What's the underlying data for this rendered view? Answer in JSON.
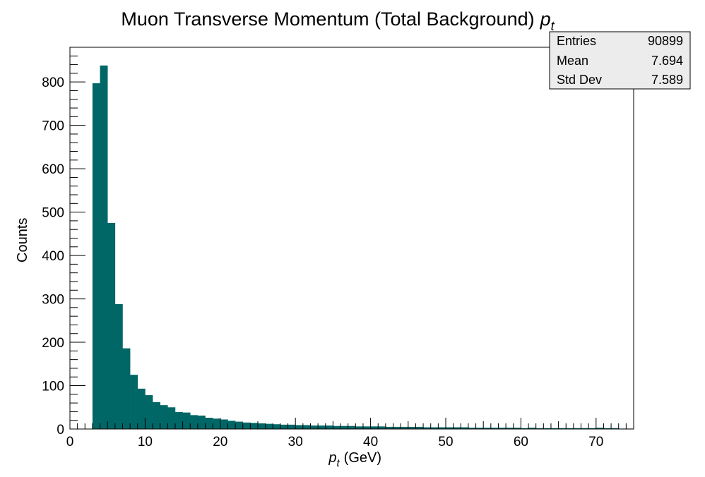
{
  "chart_data": {
    "type": "bar",
    "title": "Muon Transverse Momentum (Total Background)",
    "title_math": {
      "base": "p",
      "sub": "t"
    },
    "xlabel": {
      "base": "p",
      "sub": "t",
      "unit": "(GeV)"
    },
    "ylabel": "Counts",
    "xlim": [
      0,
      75
    ],
    "ylim": [
      0,
      880
    ],
    "xticks": [
      0,
      10,
      20,
      30,
      40,
      50,
      60,
      70
    ],
    "yticks": [
      0,
      100,
      200,
      300,
      400,
      500,
      600,
      700,
      800
    ],
    "bin_width": 1,
    "bins_start": 3,
    "values": [
      797,
      838,
      475,
      288,
      186,
      125,
      93,
      78,
      62,
      55,
      50,
      39,
      38,
      32,
      31,
      26,
      24,
      22,
      19,
      17,
      15,
      14,
      13,
      12,
      11,
      10,
      10,
      9,
      9,
      8,
      8,
      8,
      7,
      7,
      7,
      6,
      6,
      6,
      6,
      5,
      5,
      5,
      5,
      5,
      4,
      4,
      4,
      4,
      4,
      4,
      3,
      3,
      3,
      3,
      3,
      3,
      3,
      2,
      3,
      2,
      2,
      2,
      2,
      2,
      2,
      2,
      2,
      3,
      2,
      2,
      1,
      1
    ],
    "color": "#006666",
    "grid": false,
    "legend": "none",
    "stats_box": {
      "placement": "top-right",
      "rows": [
        {
          "label": "Entries",
          "value": "90899"
        },
        {
          "label": "Mean",
          "value": "7.694"
        },
        {
          "label": "Std Dev",
          "value": "7.589"
        }
      ]
    }
  }
}
